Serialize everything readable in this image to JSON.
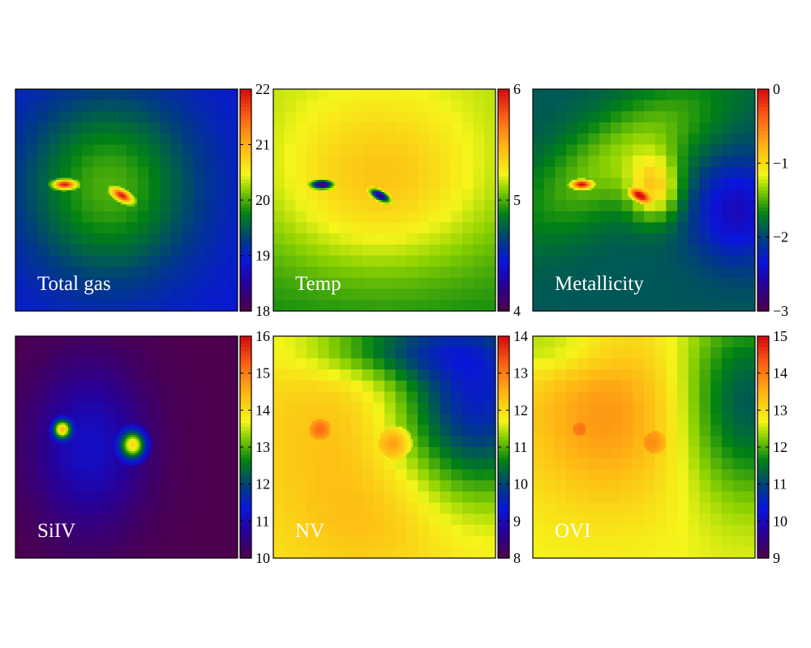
{
  "chart_data": [
    {
      "type": "heatmap",
      "label": "Total gas",
      "colorbar": {
        "range": [
          18,
          22
        ],
        "ticks": [
          "18",
          "19",
          "20",
          "21",
          "22"
        ]
      },
      "field": {
        "background": 18.9,
        "blobs": [
          {
            "cx": 0.42,
            "cy": 0.44,
            "sx": 0.28,
            "sy": 0.3,
            "amp": 1.1
          },
          {
            "cx": 0.22,
            "cy": 0.43,
            "sx": 0.035,
            "sy": 0.014,
            "amp": 2.2,
            "fine": true
          },
          {
            "cx": 0.48,
            "cy": 0.48,
            "sx": 0.035,
            "sy": 0.016,
            "amp": 2.0,
            "fine": true,
            "rot": 0.5
          }
        ]
      }
    },
    {
      "type": "heatmap",
      "label": "Temp",
      "colorbar": {
        "range": [
          4,
          6
        ],
        "ticks": [
          "4",
          "5",
          "6"
        ]
      },
      "field": {
        "background": 5.12,
        "gradient": [
          0,
          -0.22
        ],
        "blobs": [
          {
            "cx": 0.48,
            "cy": 0.42,
            "sx": 0.35,
            "sy": 0.28,
            "amp": 0.4
          },
          {
            "cx": 0.22,
            "cy": 0.43,
            "sx": 0.03,
            "sy": 0.012,
            "amp": -1.35,
            "fine": true
          },
          {
            "cx": 0.48,
            "cy": 0.48,
            "sx": 0.03,
            "sy": 0.013,
            "amp": -1.35,
            "fine": true,
            "rot": 0.5
          }
        ]
      }
    },
    {
      "type": "heatmap",
      "label": "Metallicity",
      "colorbar": {
        "range": [
          -3,
          0
        ],
        "ticks": [
          "−3",
          "−2",
          "−1",
          "0"
        ]
      },
      "field": {
        "background": -1.9,
        "blobs": [
          {
            "cx": 0.4,
            "cy": 0.3,
            "sx": 0.36,
            "sy": 0.14,
            "amp": 0.55,
            "rot": -0.6
          },
          {
            "cx": 0.55,
            "cy": 0.45,
            "sx": 0.08,
            "sy": 0.1,
            "amp": 0.85
          },
          {
            "cx": 0.92,
            "cy": 0.55,
            "sx": 0.14,
            "sy": 0.16,
            "amp": -0.6
          },
          {
            "cx": 0.22,
            "cy": 0.43,
            "sx": 0.03,
            "sy": 0.013,
            "amp": 1.5,
            "fine": true
          },
          {
            "cx": 0.48,
            "cy": 0.48,
            "sx": 0.03,
            "sy": 0.015,
            "amp": 1.4,
            "fine": true,
            "rot": 0.5
          }
        ]
      }
    },
    {
      "type": "heatmap",
      "label": "SiIV",
      "colorbar": {
        "range": [
          10,
          16
        ],
        "ticks": [
          "10",
          "11",
          "12",
          "13",
          "14",
          "15",
          "16"
        ]
      },
      "field": {
        "background": 10.0,
        "blobs": [
          {
            "cx": 0.33,
            "cy": 0.5,
            "sx": 0.18,
            "sy": 0.26,
            "amp": 1.1
          },
          {
            "cx": 0.21,
            "cy": 0.42,
            "sx": 0.028,
            "sy": 0.03,
            "amp": 3.6,
            "fine": true
          },
          {
            "cx": 0.53,
            "cy": 0.49,
            "sx": 0.04,
            "sy": 0.045,
            "amp": 3.5,
            "fine": true
          }
        ]
      }
    },
    {
      "type": "heatmap",
      "label": "NV",
      "colorbar": {
        "range": [
          8,
          14
        ],
        "ticks": [
          "8",
          "9",
          "10",
          "11",
          "12",
          "13",
          "14"
        ]
      },
      "field": {
        "background": 11.9,
        "blobs": [
          {
            "cx": 0.28,
            "cy": 0.45,
            "sx": 0.26,
            "sy": 0.28,
            "amp": 0.45
          },
          {
            "cx": 0.45,
            "cy": 0.85,
            "sx": 0.25,
            "sy": 0.18,
            "amp": 0.35
          },
          {
            "cx": 0.92,
            "cy": 0.28,
            "sx": 0.25,
            "sy": 0.3,
            "amp": -2.4
          },
          {
            "cx": 0.55,
            "cy": 0.05,
            "sx": 0.3,
            "sy": 0.1,
            "amp": -1.2
          },
          {
            "cx": 0.21,
            "cy": 0.42,
            "sx": 0.035,
            "sy": 0.035,
            "amp": 0.9,
            "fine": true
          },
          {
            "cx": 0.55,
            "cy": 0.48,
            "sx": 0.05,
            "sy": 0.05,
            "amp": 1.1,
            "fine": true
          }
        ]
      }
    },
    {
      "type": "heatmap",
      "label": "OVI",
      "colorbar": {
        "range": [
          9,
          15
        ],
        "ticks": [
          "9",
          "10",
          "11",
          "12",
          "13",
          "14",
          "15"
        ]
      },
      "field": {
        "background": 12.7,
        "blobs": [
          {
            "cx": 0.35,
            "cy": 0.35,
            "sx": 0.3,
            "sy": 0.3,
            "amp": 1.1
          },
          {
            "cx": 0.95,
            "cy": 0.3,
            "sx": 0.22,
            "sy": 0.3,
            "amp": -1.6
          },
          {
            "cx": 0.1,
            "cy": 0.05,
            "sx": 0.2,
            "sy": 0.1,
            "amp": -0.6
          },
          {
            "cx": 0.21,
            "cy": 0.42,
            "sx": 0.035,
            "sy": 0.035,
            "amp": 0.5,
            "fine": true
          },
          {
            "cx": 0.55,
            "cy": 0.48,
            "sx": 0.05,
            "sy": 0.05,
            "amp": 0.6,
            "fine": true
          }
        ]
      }
    }
  ]
}
